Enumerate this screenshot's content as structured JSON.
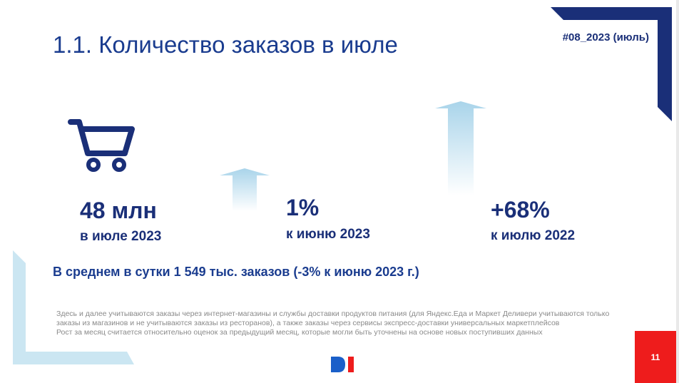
{
  "slide": {
    "title": "1.1. Количество заказов в июле",
    "tag": "#08_2023 (июль)",
    "page_number": "11"
  },
  "metrics": [
    {
      "value": "48 млн",
      "label": "в июле 2023"
    },
    {
      "value": "1%",
      "label": "к июню 2023"
    },
    {
      "value": "+68%",
      "label": "к июлю 2022"
    }
  ],
  "average_line": "В среднем в сутки 1 549 тыс. заказов (-3% к июню 2023 г.)",
  "footnotes": {
    "line1": "Здесь и далее учитываются заказы через интернет-магазины и службы доставки продуктов питания (для Яндекс.Еда и Маркет Деливери учитываются только заказы из магазинов и не учитываются заказы из ресторанов), а также заказы через сервисы экспресс-доставки универсальных маркетплейсов",
    "line2": "Рост за месяц считается относительно оценок за предыдущий месяц, которые могли быть уточнены на основе новых поступивших данных"
  },
  "icons": {
    "cart": "shopping-cart-icon",
    "arrow": "up-arrow-icon",
    "logo": "di-logo-icon"
  },
  "colors": {
    "primary": "#1a3c8f",
    "dark_navy": "#1a2f78",
    "light_blue": "#cbe6f2",
    "page_badge": "#ee1c1c"
  }
}
